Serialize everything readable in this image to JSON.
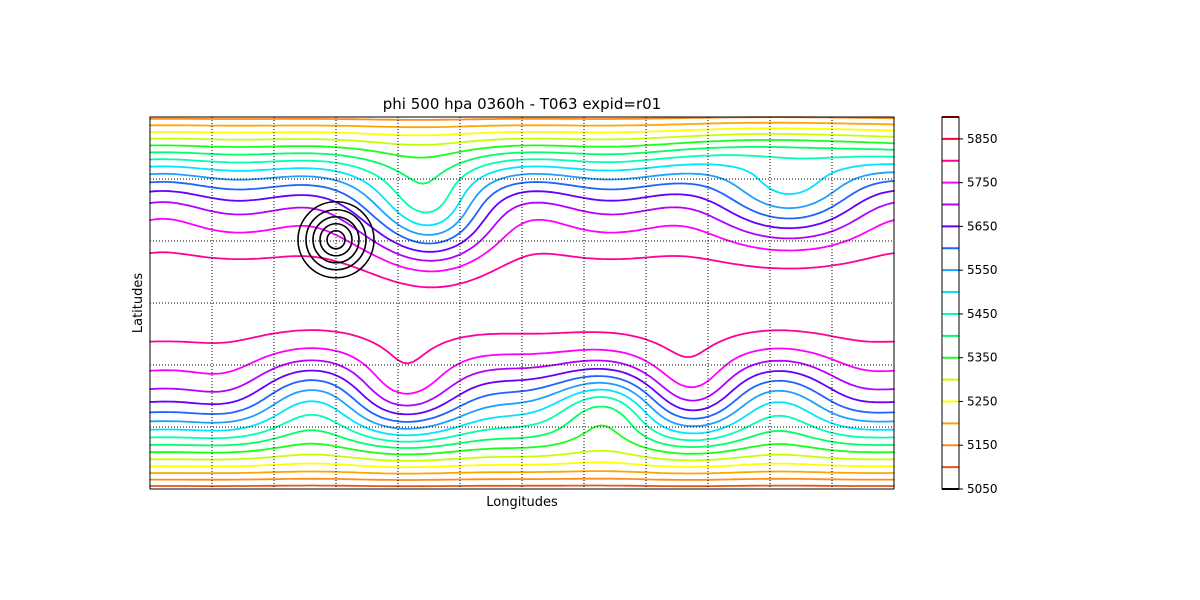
{
  "chart_data": {
    "type": "contour",
    "title": "phi 500 hpa 0360h - T063 expid=r01",
    "xlabel": "Longitudes",
    "ylabel": "Latitudes",
    "grid": true,
    "grid_style": "dotted",
    "x_gridlines": 12,
    "y_gridlines": 6,
    "colorbar": {
      "location": "right",
      "min": 5050,
      "max": 5900,
      "step": 50,
      "tick_labels": [
        "5850",
        "5750",
        "5650",
        "5550",
        "5450",
        "5350",
        "5250",
        "5150",
        "5050"
      ],
      "tick_values": [
        5850,
        5750,
        5650,
        5550,
        5450,
        5350,
        5250,
        5150,
        5050
      ],
      "colors": [
        "#000000",
        "#e6551a",
        "#ff8c1a",
        "#ffa500",
        "#ffff00",
        "#c8ff00",
        "#7dff00",
        "#19ff19",
        "#00ff66",
        "#00ffb0",
        "#00e5ff",
        "#1ea0ff",
        "#1e64ff",
        "#1414ff",
        "#6400ff",
        "#b400ff",
        "#ff00ff",
        "#ff0099",
        "#ff0033",
        "#d40000"
      ]
    },
    "levels": [
      5100,
      5150,
      5200,
      5250,
      5300,
      5350,
      5400,
      5450,
      5500,
      5550,
      5600,
      5650,
      5700,
      5750,
      5800,
      5850
    ]
  }
}
